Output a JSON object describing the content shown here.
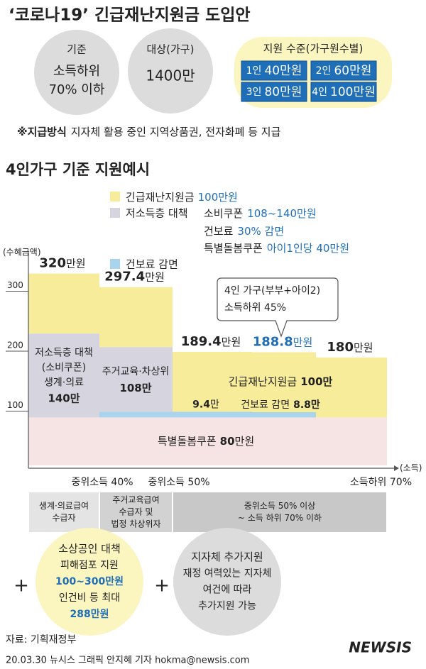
{
  "title": "‘코로나19’ 긴급재난지원금 도입안",
  "criteria": {
    "label": "기준",
    "lines": [
      "소득하위",
      "70% 이하"
    ]
  },
  "target": {
    "label": "대상(가구)",
    "value": "1400만"
  },
  "support": {
    "label": "지원 수준(가구원수별)",
    "items": [
      {
        "size": "1인",
        "amount": "40만원"
      },
      {
        "size": "2인",
        "amount": "60만원"
      },
      {
        "size": "3인",
        "amount": "80만원"
      },
      {
        "size": "4인",
        "amount": "100만원"
      }
    ]
  },
  "note": {
    "lead": "※지급방식",
    "text": "지자체 활용 중인 지역상품권, 전자화폐 등 지급"
  },
  "example_title": "4인가구 기준 지원예시",
  "legend": [
    {
      "name": "긴급재난지원금",
      "lines": [
        {
          "text": "",
          "value": "100만원"
        }
      ]
    },
    {
      "name": "저소득층 대책",
      "lines": [
        {
          "text": "소비쿠폰",
          "value": "108~140만원"
        },
        {
          "text": "건보료",
          "value": "30% 감면"
        },
        {
          "text": "특별돌봄쿠폰",
          "value": "아이1인당 40만원"
        }
      ]
    },
    {
      "name": "건보료 감면"
    }
  ],
  "chart": {
    "y_axis_label": "(수혜금액)",
    "x_axis_label": "(소득)",
    "ylim": [
      0,
      350
    ],
    "yticks": [
      100,
      200,
      300
    ],
    "unit": "만원",
    "short_unit": "만",
    "colors": {
      "special": "#f6e3e3",
      "insurance": "#a9d4ee",
      "low_income": "#d6d4df",
      "disaster": "#f7ec9a",
      "highlight": "#1f6fb8"
    },
    "highlight_column": 3,
    "layer_names": {
      "low_income": [
        "저소득층 대책",
        "(소비쿠폰)",
        "생계·의료"
      ],
      "low_income_2": "주거교육·차상위",
      "disaster": "긴급재난지원금",
      "insurance": "건보료 감면",
      "special": "특별돌봄쿠폰"
    },
    "columns": [
      {
        "total": 320,
        "special": 80,
        "insurance": null,
        "low_income": 140,
        "disaster": 100
      },
      {
        "total": 297.4,
        "special": 80,
        "insurance": 9.4,
        "low_income": 108,
        "disaster": 100
      },
      {
        "total": 189.4,
        "special": 80,
        "insurance": 9.4,
        "low_income": null,
        "disaster": 100
      },
      {
        "total": 188.8,
        "special": 80,
        "insurance": 8.8,
        "low_income": null,
        "disaster": 100
      },
      {
        "total": 180,
        "special": 80,
        "insurance": null,
        "low_income": null,
        "disaster": 100
      }
    ],
    "x_labels": [
      "중위소득 40%",
      "중위소득 50%",
      "소득하위 70%"
    ],
    "callout": [
      "4인 가구(부부+아이2)",
      "소득하위 45%"
    ],
    "bands": [
      [
        "생계·의료급여",
        "수급자"
      ],
      [
        "주거교육급여",
        "수급자 및",
        "법정 차상위자"
      ],
      [
        "중위소득 50% 이상",
        "~ 소득 하위 70% 이하"
      ]
    ]
  },
  "extra": [
    {
      "title": "소상공인 대책",
      "lines": [
        {
          "text": "피해점포 지원"
        },
        {
          "text": "100~300만원",
          "blue": true
        },
        {
          "text": "인건비 등 최대"
        },
        {
          "text": "288만원",
          "blue": true
        }
      ]
    },
    {
      "title": "지자체 추가지원",
      "lines": [
        {
          "text": "재정 여력있는 지자체"
        },
        {
          "text": "여건에 따라"
        },
        {
          "text": "추가지원 가능"
        }
      ]
    }
  ],
  "plus": "+",
  "source": "자료: 기획재정부",
  "credit": "20.03.30 뉴시스 그래픽 안지혜 기자 hokma@newsis.com",
  "logo": "NEWSIS"
}
